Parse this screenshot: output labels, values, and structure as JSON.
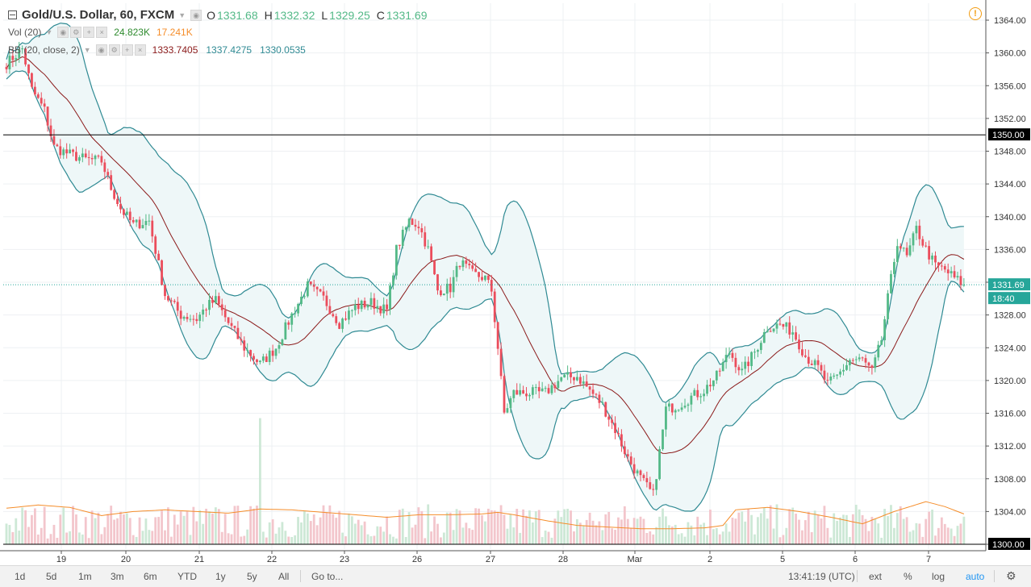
{
  "legend": {
    "title": "Gold/U.S. Dollar, 60, FXCM",
    "ohlc": [
      {
        "k": "O",
        "v": "1331.68"
      },
      {
        "k": "H",
        "v": "1332.32"
      },
      {
        "k": "L",
        "v": "1329.25"
      },
      {
        "k": "C",
        "v": "1331.69"
      }
    ],
    "vol": {
      "name": "Vol (20)",
      "v1": "24.823K",
      "v2": "17.241K"
    },
    "bb": {
      "name": "BB (20, close, 2)",
      "basis": "1333.7405",
      "upper": "1337.4275",
      "lower": "1330.0535"
    }
  },
  "colors": {
    "up": "#53b987",
    "down": "#eb4d5c",
    "band": "#2f8a93",
    "basis": "#8b1a1a",
    "vol_ma": "#f58d2a",
    "price_line": "#26a69a",
    "band_fill": "#eef7f8"
  },
  "y_axis": {
    "ticks": [
      "1364.00",
      "1360.00",
      "1356.00",
      "1352.00",
      "1348.00",
      "1344.00",
      "1340.00",
      "1336.00",
      "1332.00",
      "1328.00",
      "1324.00",
      "1320.00",
      "1316.00",
      "1312.00",
      "1308.00",
      "1304.00",
      "1300.00"
    ],
    "hline_label": "1350.00",
    "hline_bottom_label": "1300.00",
    "last_price": "1331.69",
    "countdown": "18:40"
  },
  "x_axis": {
    "labels": [
      "19",
      "20",
      "21",
      "22",
      "23",
      "26",
      "27",
      "28",
      "Mar",
      "2",
      "5",
      "6",
      "7"
    ]
  },
  "bottom_bar": {
    "ranges": [
      "1d",
      "5d",
      "1m",
      "3m",
      "6m",
      "YTD",
      "1y",
      "5y",
      "All"
    ],
    "goto": "Go to...",
    "time": "13:41:19 (UTC)",
    "opts": [
      "ext",
      "%",
      "log",
      "auto"
    ]
  },
  "chart_data": {
    "type": "candlestick",
    "ylim": [
      1300,
      1365
    ],
    "hline": 1350,
    "last_price": 1331.69,
    "date_labels": [
      "19",
      "20",
      "21",
      "22",
      "23",
      "26",
      "27",
      "28",
      "Mar",
      "2",
      "5",
      "6",
      "7"
    ],
    "close_anchors": [
      [
        0,
        1358.7
      ],
      [
        5,
        1360.5
      ],
      [
        8,
        1355.5
      ],
      [
        12,
        1353
      ],
      [
        15,
        1348.5
      ],
      [
        20,
        1347.6
      ],
      [
        25,
        1347
      ],
      [
        30,
        1346.8
      ],
      [
        33,
        1343.5
      ],
      [
        36,
        1341
      ],
      [
        40,
        1339
      ],
      [
        45,
        1339.5
      ],
      [
        50,
        1330.5
      ],
      [
        55,
        1328
      ],
      [
        60,
        1327.5
      ],
      [
        63,
        1329
      ],
      [
        66,
        1329.8
      ],
      [
        70,
        1327
      ],
      [
        75,
        1324
      ],
      [
        80,
        1322
      ],
      [
        85,
        1324
      ],
      [
        90,
        1328
      ],
      [
        95,
        1331.5
      ],
      [
        100,
        1330
      ],
      [
        105,
        1327
      ],
      [
        110,
        1329
      ],
      [
        115,
        1329.5
      ],
      [
        120,
        1328.5
      ],
      [
        123,
        1336
      ],
      [
        127,
        1339.5
      ],
      [
        130,
        1339
      ],
      [
        133,
        1336
      ],
      [
        136,
        1331
      ],
      [
        140,
        1331.3
      ],
      [
        143,
        1334.5
      ],
      [
        147,
        1333
      ],
      [
        151,
        1332.5
      ],
      [
        153,
        1331
      ],
      [
        155,
        1324
      ],
      [
        157,
        1316
      ],
      [
        160,
        1318.5
      ],
      [
        165,
        1318.5
      ],
      [
        170,
        1318.5
      ],
      [
        175,
        1320.3
      ],
      [
        180,
        1320.5
      ],
      [
        184,
        1318.8
      ],
      [
        188,
        1317
      ],
      [
        192,
        1314
      ],
      [
        196,
        1310.5
      ],
      [
        200,
        1308
      ],
      [
        204,
        1306
      ],
      [
        208,
        1316.5
      ],
      [
        212,
        1317
      ],
      [
        216,
        1318
      ],
      [
        220,
        1318.8
      ],
      [
        224,
        1320.5
      ],
      [
        228,
        1323.5
      ],
      [
        232,
        1321
      ],
      [
        236,
        1323.5
      ],
      [
        240,
        1326.5
      ],
      [
        244,
        1326.8
      ],
      [
        248,
        1326
      ],
      [
        252,
        1323
      ],
      [
        256,
        1321.5
      ],
      [
        259,
        1319.5
      ],
      [
        262,
        1320.5
      ],
      [
        266,
        1322.5
      ],
      [
        270,
        1322.5
      ],
      [
        273,
        1321
      ],
      [
        276,
        1325
      ],
      [
        278,
        1330
      ],
      [
        281,
        1337
      ],
      [
        284,
        1335
      ],
      [
        287,
        1338.5
      ],
      [
        290,
        1336
      ],
      [
        293,
        1334
      ],
      [
        296,
        1333.5
      ],
      [
        299,
        1332.5
      ],
      [
        302,
        1331.7
      ]
    ],
    "vol_ma": [
      [
        0,
        1304.4
      ],
      [
        10,
        1304.8
      ],
      [
        20,
        1304.5
      ],
      [
        30,
        1303.5
      ],
      [
        40,
        1304
      ],
      [
        50,
        1304.2
      ],
      [
        60,
        1304
      ],
      [
        70,
        1303.8
      ],
      [
        80,
        1304.3
      ],
      [
        90,
        1304.2
      ],
      [
        100,
        1303.9
      ],
      [
        110,
        1303.6
      ],
      [
        120,
        1303.3
      ],
      [
        130,
        1303.6
      ],
      [
        140,
        1303.6
      ],
      [
        150,
        1303.7
      ],
      [
        155,
        1303.9
      ],
      [
        160,
        1303.6
      ],
      [
        170,
        1302.9
      ],
      [
        180,
        1302.3
      ],
      [
        190,
        1302.1
      ],
      [
        200,
        1301.9
      ],
      [
        210,
        1301.9
      ],
      [
        220,
        1302
      ],
      [
        226,
        1302.3
      ],
      [
        230,
        1304.2
      ],
      [
        240,
        1304.5
      ],
      [
        250,
        1304
      ],
      [
        260,
        1303.3
      ],
      [
        270,
        1302.5
      ],
      [
        280,
        1304
      ],
      [
        290,
        1305.2
      ],
      [
        296,
        1304.6
      ],
      [
        302,
        1303.7
      ]
    ],
    "vol_values_k": {
      "range_k": [
        2,
        31
      ],
      "spike_k": 36
    },
    "bollinger": {
      "period": 20,
      "stddev": 2
    }
  }
}
